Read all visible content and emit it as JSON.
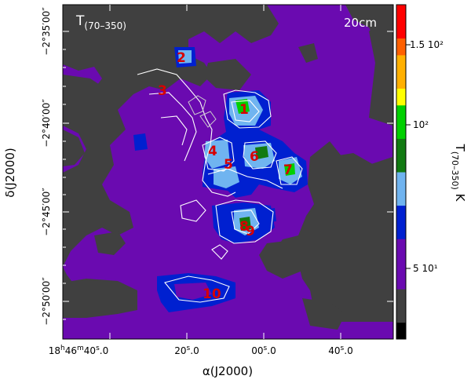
{
  "panel": {
    "map_label": "T",
    "map_label_sub": "(70–350)",
    "band_label": "20cm"
  },
  "axes": {
    "x_title": "α(J2000)",
    "y_title": "δ(J2000)",
    "x_ticks": [
      {
        "h": "18",
        "m": "46",
        "s": "40",
        "frac": "0"
      },
      {
        "s": "20",
        "frac": "0"
      },
      {
        "s": "00",
        "frac": "0"
      },
      {
        "s": "40",
        "frac": "0"
      }
    ],
    "y_ticks": [
      "−2°35′00″",
      "−2°40′00″",
      "−2°45′00″",
      "−2°50′00″"
    ]
  },
  "colorbar": {
    "title": "T(70–350) K",
    "title_main": "T",
    "title_sub": "(70–350)",
    "title_unit": "K",
    "ticks": [
      "1.5 10²",
      "10²",
      "5 10¹"
    ],
    "colors": [
      "#000000",
      "#404040",
      "#404040",
      "#6a0ab0",
      "#6a0ab0",
      "#6a0ab0",
      "#0020d0",
      "#0020d0",
      "#70b4f0",
      "#70b4f0",
      "#127a12",
      "#127a12",
      "#00d000",
      "#00d000",
      "#ffff00",
      "#ffb000",
      "#ffb000",
      "#ff6000",
      "#ff0000",
      "#ff0000"
    ]
  },
  "sources": [
    "1",
    "2",
    "3",
    "4",
    "5",
    "6",
    "7",
    "8",
    "9",
    "10"
  ],
  "colors": {
    "background_low": "#404040",
    "map_mid": "#6a0ab0",
    "contour": "#ffffff"
  }
}
